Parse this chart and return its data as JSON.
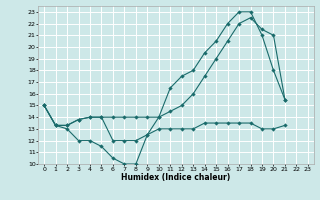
{
  "title": "",
  "xlabel": "Humidex (Indice chaleur)",
  "ylabel": "",
  "background_color": "#cde8e8",
  "grid_color": "#ffffff",
  "line_color": "#1a6b6b",
  "xlim": [
    -0.5,
    23.5
  ],
  "ylim": [
    10,
    23.5
  ],
  "xticks": [
    0,
    1,
    2,
    3,
    4,
    5,
    6,
    7,
    8,
    9,
    10,
    11,
    12,
    13,
    14,
    15,
    16,
    17,
    18,
    19,
    20,
    21,
    22,
    23
  ],
  "yticks": [
    10,
    11,
    12,
    13,
    14,
    15,
    16,
    17,
    18,
    19,
    20,
    21,
    22,
    23
  ],
  "series1_y": [
    15,
    13.3,
    13.0,
    12.0,
    12.0,
    11.5,
    10.5,
    10.0,
    10.0,
    12.5,
    14.0,
    16.5,
    17.5,
    18.0,
    19.5,
    20.5,
    22.0,
    23.0,
    23.0,
    21.0,
    18.0,
    15.5
  ],
  "series2_y": [
    15,
    13.3,
    13.3,
    13.8,
    14.0,
    14.0,
    12.0,
    12.0,
    12.0,
    12.5,
    13.0,
    13.0,
    13.0,
    13.0,
    13.5,
    13.5,
    13.5,
    13.5,
    13.5,
    13.0,
    13.0,
    13.3
  ],
  "series3_y": [
    15,
    13.3,
    13.3,
    13.8,
    14.0,
    14.0,
    14.0,
    14.0,
    14.0,
    14.0,
    14.0,
    14.5,
    15.0,
    16.0,
    17.5,
    19.0,
    20.5,
    22.0,
    22.5,
    21.5,
    21.0,
    15.5
  ]
}
